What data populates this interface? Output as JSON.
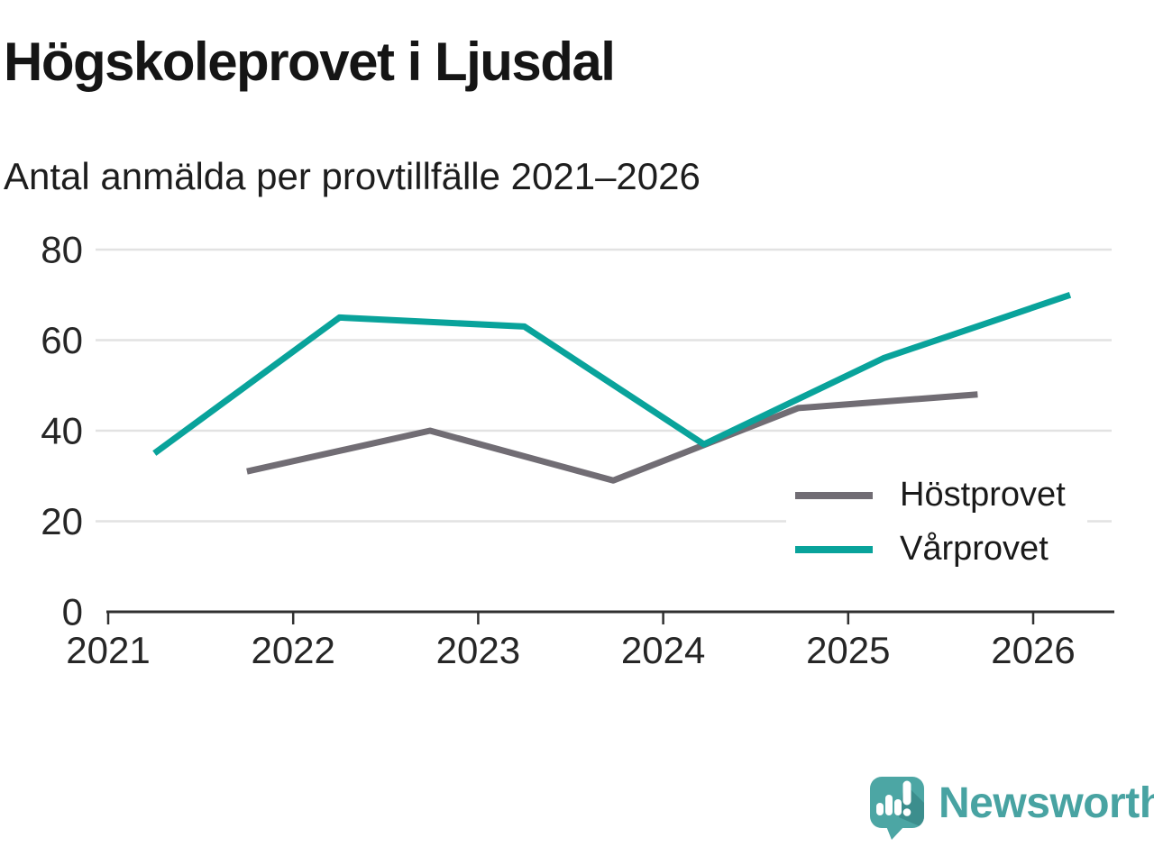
{
  "header": {
    "title": "Högskoleprovet i Ljusdal",
    "subtitle": "Antal anmälda per provtillfälle 2021–2026"
  },
  "chart_data": {
    "type": "line",
    "title": "Högskoleprovet i Ljusdal",
    "subtitle": "Antal anmälda per provtillfälle 2021–2026",
    "xlabel": "",
    "ylabel": "",
    "ylim": [
      0,
      80
    ],
    "yticks": [
      0,
      20,
      40,
      60,
      80
    ],
    "xticks": [
      2021,
      2022,
      2023,
      2024,
      2025,
      2026
    ],
    "xlim": [
      2021,
      2026.45
    ],
    "grid": true,
    "legend_position": "inside-right",
    "series": [
      {
        "name": "Höstprovet",
        "color": "#716d74",
        "x": [
          2021.75,
          2022.74,
          2023.73,
          2024.73,
          2025.7
        ],
        "values": [
          31,
          40,
          29,
          45,
          48
        ]
      },
      {
        "name": "Vårprovet",
        "color": "#09a39b",
        "x": [
          2021.25,
          2022.25,
          2023.25,
          2024.22,
          2025.19,
          2026.2
        ],
        "values": [
          35,
          65,
          63,
          37,
          56,
          70
        ]
      }
    ]
  },
  "colors": {
    "background": "#ffffff",
    "grid": "#e2e2e2",
    "axis": "#303030",
    "tick_label": "#262626",
    "legend_text": "#1a1a1a",
    "brand_teal": "#48a3a2",
    "bubble_teal": "#4ca6a4",
    "bubble_shadow": "#3c8e8d"
  },
  "branding": {
    "name": "Newsworthy"
  }
}
